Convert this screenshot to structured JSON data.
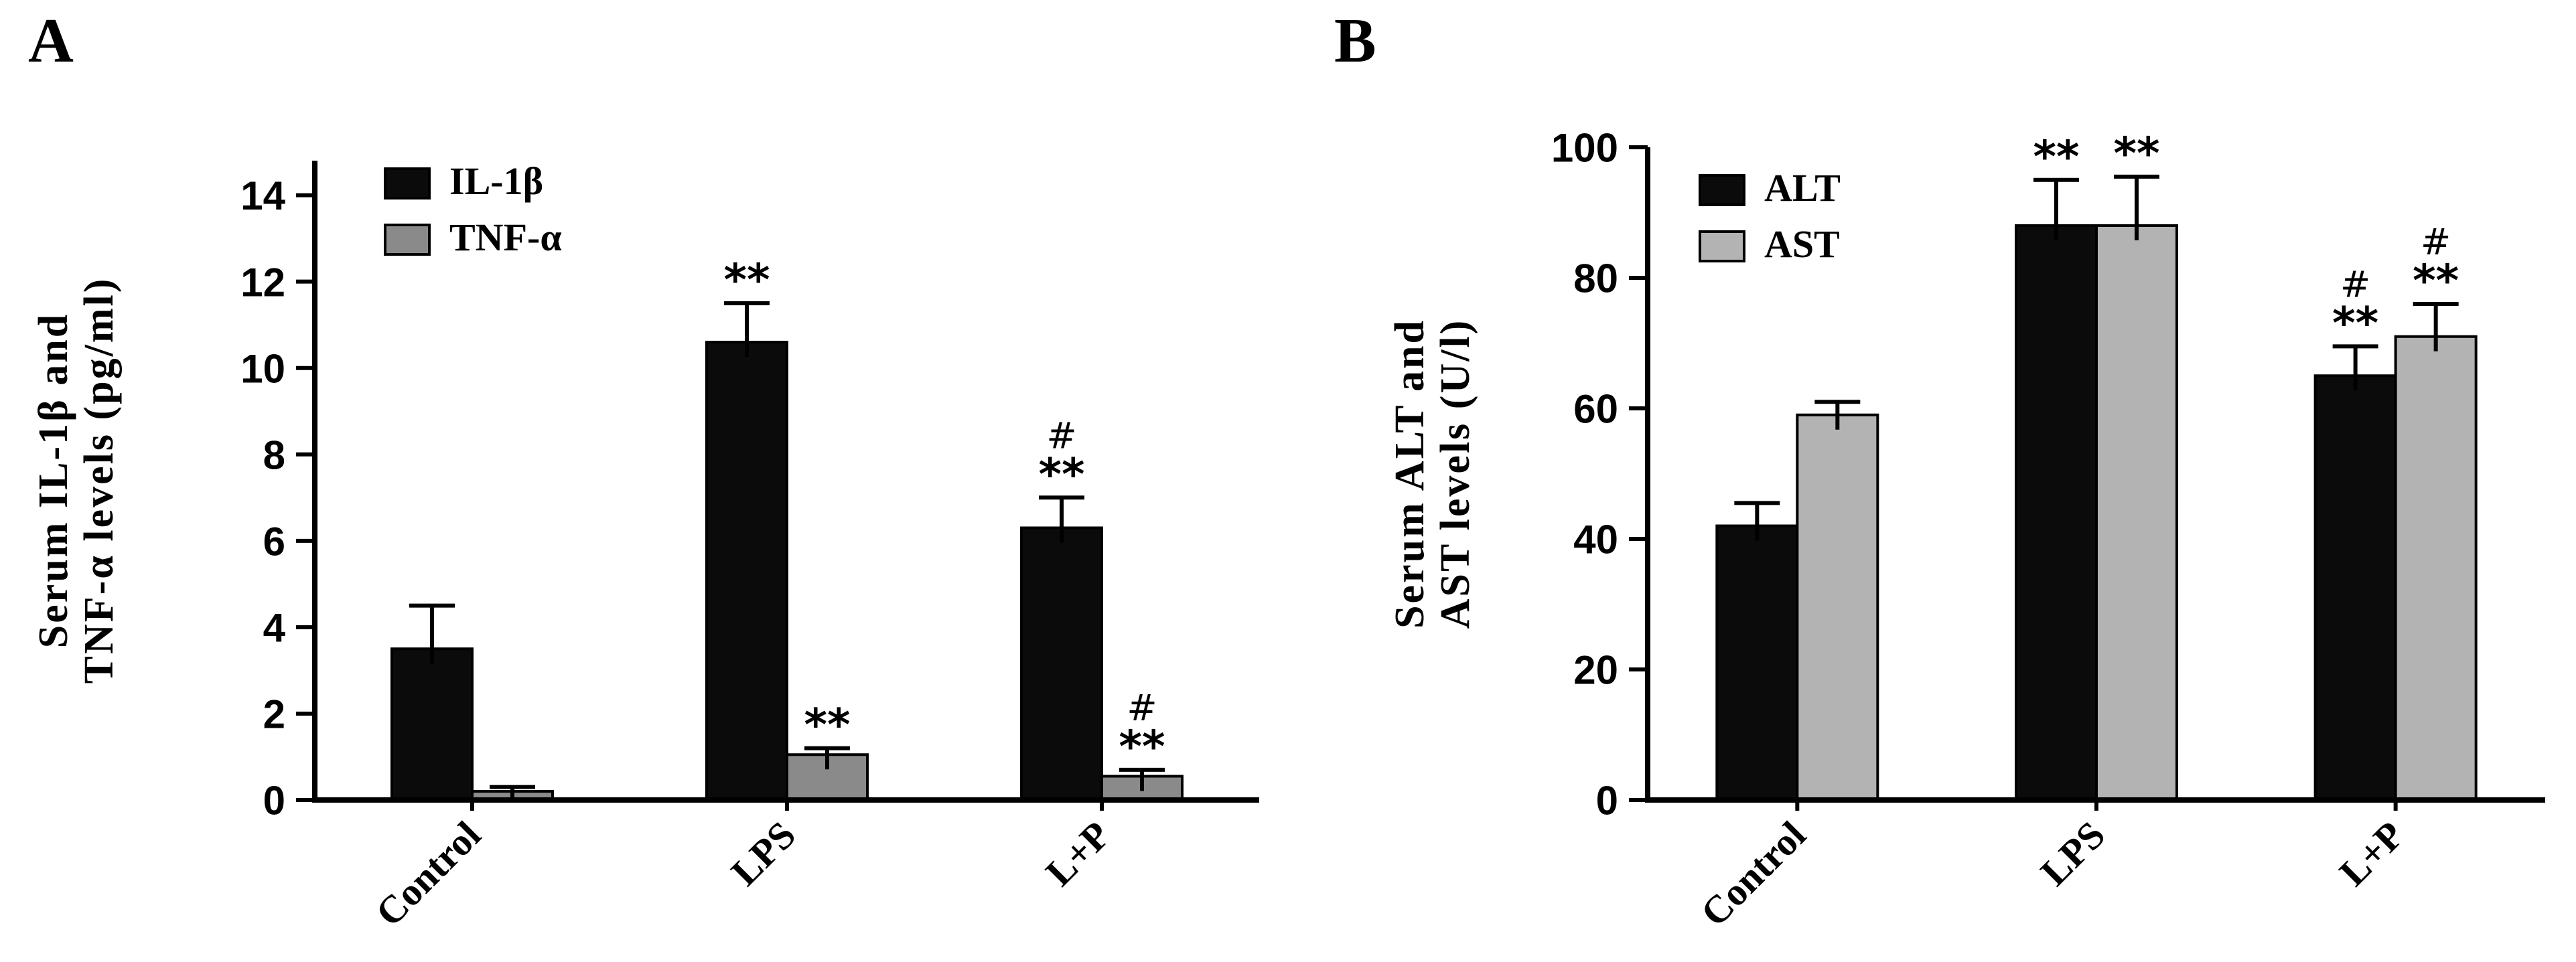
{
  "figure": {
    "background": "#ffffff",
    "axis_color": "#000000"
  },
  "panels": [
    {
      "label": "A"
    },
    {
      "label": "B"
    }
  ],
  "chart_data": [
    {
      "type": "bar",
      "panel": "A",
      "title": "",
      "xlabel": "",
      "ylabel": "Serum IL-1β and TNF-α levels (pg/ml)",
      "ylabel_lines": [
        "Serum  IL-1β and",
        "TNF-α levels (pg/ml)"
      ],
      "categories": [
        "Control",
        "LPS",
        "L+P"
      ],
      "yticks": [
        0,
        2,
        4,
        6,
        8,
        10,
        12,
        14
      ],
      "ylim": [
        0,
        14.8
      ],
      "grid": false,
      "legend_position": "top-left",
      "series": [
        {
          "name": "IL-1β",
          "color": "#0b0b0b",
          "values": [
            3.5,
            10.6,
            6.3
          ],
          "errors": [
            1.0,
            0.9,
            0.7
          ],
          "annotations": [
            [],
            [
              "**"
            ],
            [
              "**",
              "#"
            ]
          ]
        },
        {
          "name": "TNF-α",
          "color": "#8a8a8a",
          "values": [
            0.2,
            1.05,
            0.55
          ],
          "errors": [
            0.1,
            0.15,
            0.15
          ],
          "annotations": [
            [],
            [
              "**"
            ],
            [
              "**",
              "#"
            ]
          ]
        }
      ]
    },
    {
      "type": "bar",
      "panel": "B",
      "title": "",
      "xlabel": "",
      "ylabel": "Serum ALT and AST levels (U/l)",
      "ylabel_lines": [
        "Serum ALT and",
        "AST levels (U/l)"
      ],
      "categories": [
        "Control",
        "LPS",
        "L+P"
      ],
      "yticks": [
        0,
        20,
        40,
        60,
        80,
        100
      ],
      "ylim": [
        0,
        100
      ],
      "grid": false,
      "legend_position": "top-left",
      "series": [
        {
          "name": "ALT",
          "color": "#0b0b0b",
          "values": [
            42,
            88,
            65
          ],
          "errors": [
            3.5,
            7,
            4.5
          ],
          "annotations": [
            [],
            [
              "**"
            ],
            [
              "**",
              "#"
            ]
          ]
        },
        {
          "name": "AST",
          "color": "#b3b3b3",
          "values": [
            59,
            88,
            71
          ],
          "errors": [
            2,
            7.5,
            5
          ],
          "annotations": [
            [],
            [
              "**"
            ],
            [
              "**",
              "#"
            ]
          ]
        }
      ]
    }
  ]
}
